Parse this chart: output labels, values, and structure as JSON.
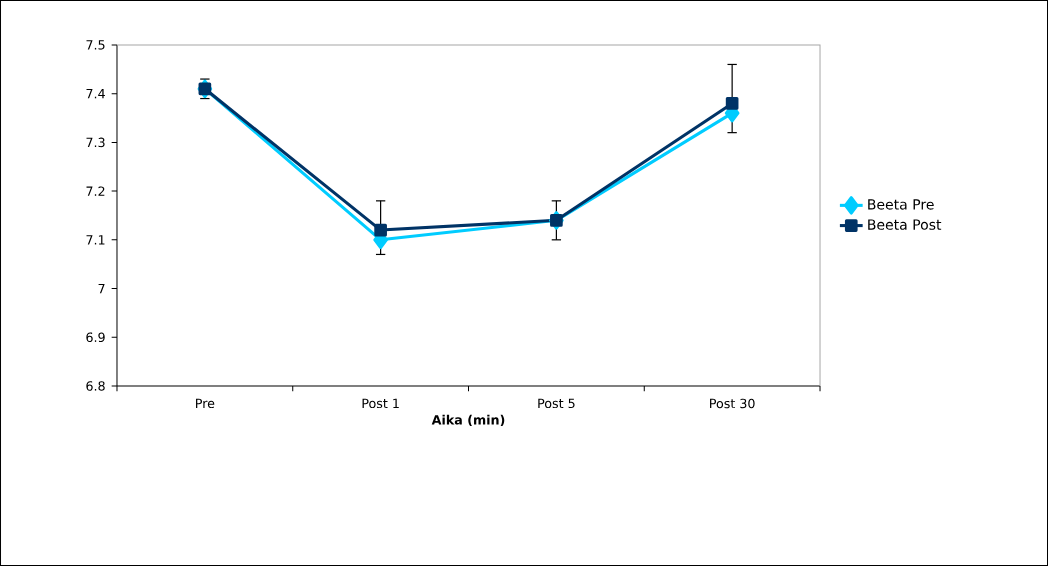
{
  "chart_data": {
    "type": "line",
    "xlabel": "Aika (min)",
    "categories": [
      "Pre",
      "Post 1",
      "Post 5",
      "Post 30"
    ],
    "ylim": [
      6.8,
      7.5
    ],
    "yticks": [
      6.8,
      6.9,
      7,
      7.1,
      7.2,
      7.3,
      7.4,
      7.5
    ],
    "legend": "right",
    "series": [
      {
        "name": "Beeta Pre",
        "color": "#00ccff",
        "marker": "diamond",
        "values": [
          7.41,
          7.1,
          7.14,
          7.36
        ]
      },
      {
        "name": "Beeta Post",
        "color": "#003366",
        "marker": "square",
        "values": [
          7.41,
          7.12,
          7.14,
          7.38
        ],
        "errors": [
          [
            7.39,
            7.43
          ],
          [
            7.07,
            7.18
          ],
          [
            7.1,
            7.18
          ],
          [
            7.32,
            7.46
          ]
        ]
      }
    ]
  }
}
